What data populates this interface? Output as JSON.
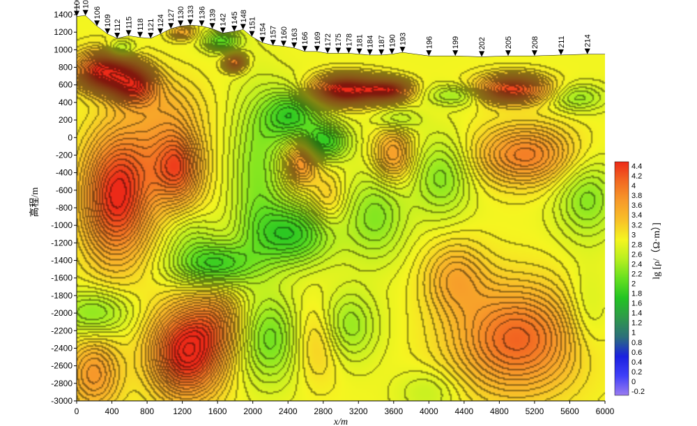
{
  "chart_data": {
    "type": "heatmap",
    "title": "",
    "xlabel": "x/m",
    "ylabel": "高程/m",
    "colorbar_label": "lg [ρ/（Ω·m）]",
    "xlim": [
      0,
      6000
    ],
    "ylim": [
      -3000,
      1400
    ],
    "x_ticks": [
      "0",
      "400",
      "800",
      "1200",
      "1600",
      "2000",
      "2400",
      "2800",
      "3200",
      "3600",
      "4000",
      "4400",
      "4800",
      "5200",
      "5600",
      "6000"
    ],
    "y_ticks": [
      "1400",
      "1200",
      "1000",
      "800",
      "600",
      "400",
      "200",
      "0",
      "-200",
      "-400",
      "-600",
      "-800",
      "-1000",
      "-1200",
      "-1400",
      "-1600",
      "-1800",
      "-2000",
      "-2200",
      "-2400",
      "-2600",
      "-2800",
      "-3000"
    ],
    "colorbar_range": [
      -0.2,
      4.4
    ],
    "colorbar_ticks": [
      "4.4",
      "4.2",
      "4",
      "3.8",
      "3.6",
      "3.4",
      "3.2",
      "3",
      "2.8",
      "2.6",
      "2.4",
      "2.2",
      "2",
      "1.8",
      "1.6",
      "1.4",
      "1.2",
      "1",
      "0.8",
      "0.6",
      "0.4",
      "0.2",
      "0",
      "-0.2"
    ],
    "colorbar_colors": [
      "#9a7cf0",
      "#4040f8",
      "#1a20e0",
      "#2c6f7a",
      "#2f9a4a",
      "#22c422",
      "#66e020",
      "#b8ef20",
      "#f5f520",
      "#f8c028",
      "#f79a2a",
      "#f26a22",
      "#ec2a18"
    ],
    "stations": [
      {
        "label": "100",
        "x": 0,
        "elev": 1380
      },
      {
        "label": "103",
        "x": 100,
        "elev": 1390
      },
      {
        "label": "106",
        "x": 230,
        "elev": 1270
      },
      {
        "label": "109",
        "x": 350,
        "elev": 1180
      },
      {
        "label": "112",
        "x": 460,
        "elev": 1130
      },
      {
        "label": "115",
        "x": 590,
        "elev": 1160
      },
      {
        "label": "118",
        "x": 720,
        "elev": 1140
      },
      {
        "label": "121",
        "x": 840,
        "elev": 1130
      },
      {
        "label": "124",
        "x": 950,
        "elev": 1180
      },
      {
        "label": "127",
        "x": 1070,
        "elev": 1240
      },
      {
        "label": "130",
        "x": 1180,
        "elev": 1270
      },
      {
        "label": "133",
        "x": 1290,
        "elev": 1280
      },
      {
        "label": "136",
        "x": 1420,
        "elev": 1270
      },
      {
        "label": "139",
        "x": 1540,
        "elev": 1240
      },
      {
        "label": "142",
        "x": 1660,
        "elev": 1190
      },
      {
        "label": "145",
        "x": 1790,
        "elev": 1210
      },
      {
        "label": "148",
        "x": 1890,
        "elev": 1230
      },
      {
        "label": "151",
        "x": 1990,
        "elev": 1150
      },
      {
        "label": "154",
        "x": 2110,
        "elev": 1080
      },
      {
        "label": "157",
        "x": 2230,
        "elev": 1050
      },
      {
        "label": "160",
        "x": 2350,
        "elev": 1040
      },
      {
        "label": "163",
        "x": 2470,
        "elev": 1020
      },
      {
        "label": "166",
        "x": 2590,
        "elev": 980
      },
      {
        "label": "169",
        "x": 2730,
        "elev": 980
      },
      {
        "label": "172",
        "x": 2850,
        "elev": 960
      },
      {
        "label": "175",
        "x": 2970,
        "elev": 960
      },
      {
        "label": "178",
        "x": 3090,
        "elev": 960
      },
      {
        "label": "181",
        "x": 3210,
        "elev": 950
      },
      {
        "label": "184",
        "x": 3330,
        "elev": 940
      },
      {
        "label": "187",
        "x": 3460,
        "elev": 940
      },
      {
        "label": "190",
        "x": 3580,
        "elev": 950
      },
      {
        "label": "193",
        "x": 3700,
        "elev": 970
      },
      {
        "label": "196",
        "x": 4000,
        "elev": 930
      },
      {
        "label": "199",
        "x": 4300,
        "elev": 930
      },
      {
        "label": "202",
        "x": 4600,
        "elev": 920
      },
      {
        "label": "205",
        "x": 4900,
        "elev": 930
      },
      {
        "label": "208",
        "x": 5200,
        "elev": 930
      },
      {
        "label": "211",
        "x": 5500,
        "elev": 940
      },
      {
        "label": "214",
        "x": 5800,
        "elev": 950
      }
    ],
    "anomalies": [
      {
        "x": 300,
        "y": 750,
        "sx": 320,
        "sy": 220,
        "v": 1.6
      },
      {
        "x": 650,
        "y": 600,
        "sx": 260,
        "sy": 220,
        "v": 1.3
      },
      {
        "x": 1050,
        "y": 350,
        "sx": 400,
        "sy": 350,
        "v": 0.3
      },
      {
        "x": 450,
        "y": -700,
        "sx": 380,
        "sy": 700,
        "v": 1.5
      },
      {
        "x": 1150,
        "y": -350,
        "sx": 260,
        "sy": 400,
        "v": 1.0
      },
      {
        "x": 900,
        "y": -200,
        "sx": 500,
        "sy": 600,
        "v": 0.5
      },
      {
        "x": 1250,
        "y": -2450,
        "sx": 400,
        "sy": 500,
        "v": 1.7
      },
      {
        "x": 1600,
        "y": -2100,
        "sx": 300,
        "sy": 400,
        "v": 0.6
      },
      {
        "x": 200,
        "y": -2700,
        "sx": 300,
        "sy": 400,
        "v": 0.8
      },
      {
        "x": 1550,
        "y": -1450,
        "sx": 450,
        "sy": 250,
        "v": -1.0
      },
      {
        "x": 1300,
        "y": -1100,
        "sx": 300,
        "sy": 250,
        "v": -0.3
      },
      {
        "x": 200,
        "y": -2000,
        "sx": 400,
        "sy": 250,
        "v": -0.6
      },
      {
        "x": 2050,
        "y": -400,
        "sx": 300,
        "sy": 900,
        "v": -0.6
      },
      {
        "x": 2450,
        "y": 250,
        "sx": 320,
        "sy": 300,
        "v": -1.0
      },
      {
        "x": 2800,
        "y": -50,
        "sx": 280,
        "sy": 200,
        "v": -1.0
      },
      {
        "x": 2450,
        "y": -1100,
        "sx": 450,
        "sy": 350,
        "v": -1.0
      },
      {
        "x": 2200,
        "y": -2300,
        "sx": 350,
        "sy": 500,
        "v": -0.7
      },
      {
        "x": 3050,
        "y": -2150,
        "sx": 350,
        "sy": 400,
        "v": -0.6
      },
      {
        "x": 3400,
        "y": -900,
        "sx": 350,
        "sy": 500,
        "v": -0.6
      },
      {
        "x": 2550,
        "y": -250,
        "sx": 180,
        "sy": 280,
        "v": 1.0
      },
      {
        "x": 2850,
        "y": -700,
        "sx": 200,
        "sy": 300,
        "v": 0.4
      },
      {
        "x": 2750,
        "y": -2300,
        "sx": 280,
        "sy": 450,
        "v": 0.5
      },
      {
        "x": 3050,
        "y": 540,
        "sx": 380,
        "sy": 160,
        "v": 1.8
      },
      {
        "x": 3550,
        "y": 540,
        "sx": 250,
        "sy": 120,
        "v": 1.3
      },
      {
        "x": 3600,
        "y": -200,
        "sx": 220,
        "sy": 300,
        "v": 0.8
      },
      {
        "x": 4150,
        "y": -450,
        "sx": 330,
        "sy": 450,
        "v": -0.6
      },
      {
        "x": 3650,
        "y": 200,
        "sx": 250,
        "sy": 130,
        "v": -0.4
      },
      {
        "x": 4300,
        "y": 480,
        "sx": 300,
        "sy": 120,
        "v": -0.5
      },
      {
        "x": 4950,
        "y": 550,
        "sx": 400,
        "sy": 160,
        "v": 1.4
      },
      {
        "x": 5100,
        "y": -200,
        "sx": 550,
        "sy": 330,
        "v": 1.0
      },
      {
        "x": 5800,
        "y": -700,
        "sx": 350,
        "sy": 450,
        "v": -0.6
      },
      {
        "x": 5000,
        "y": -2300,
        "sx": 700,
        "sy": 600,
        "v": 1.2
      },
      {
        "x": 4300,
        "y": -1600,
        "sx": 350,
        "sy": 400,
        "v": 0.6
      },
      {
        "x": 4000,
        "y": -2900,
        "sx": 350,
        "sy": 250,
        "v": -0.3
      },
      {
        "x": 5800,
        "y": -2000,
        "sx": 250,
        "sy": 500,
        "v": -0.3
      },
      {
        "x": 5700,
        "y": 450,
        "sx": 300,
        "sy": 150,
        "v": -0.5
      },
      {
        "x": 1800,
        "y": 850,
        "sx": 120,
        "sy": 100,
        "v": 1.0
      },
      {
        "x": 1650,
        "y": 1100,
        "sx": 200,
        "sy": 120,
        "v": -0.8
      },
      {
        "x": 500,
        "y": 1000,
        "sx": 160,
        "sy": 100,
        "v": -0.6
      },
      {
        "x": 1200,
        "y": 1200,
        "sx": 150,
        "sy": 90,
        "v": 0.6
      }
    ]
  }
}
